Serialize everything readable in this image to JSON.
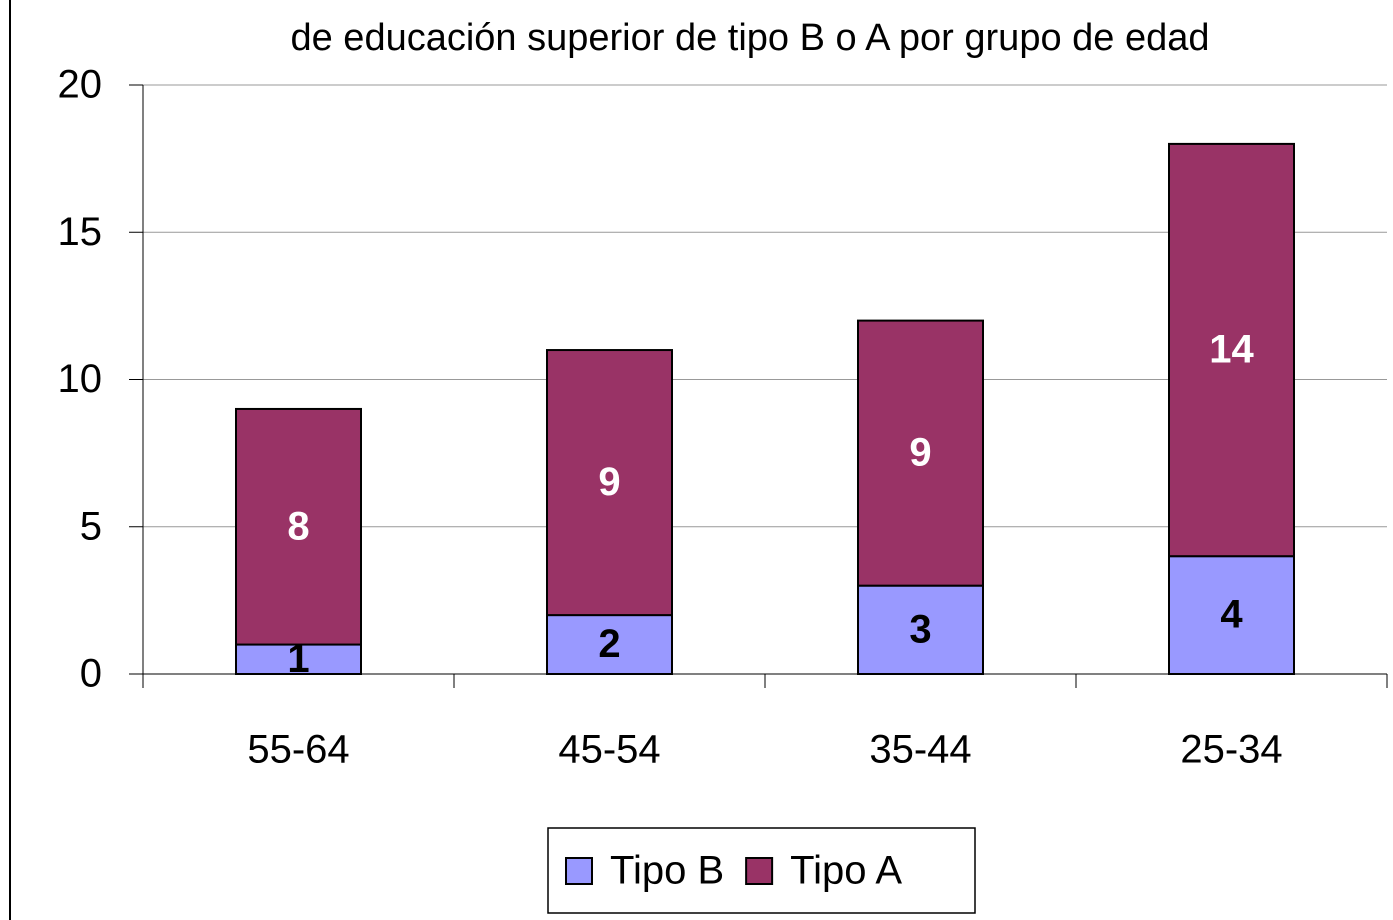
{
  "chart_data": {
    "type": "stacked_bar",
    "title": "de educación superior  de tipo B o A por grupo de edad",
    "categories": [
      "55-64",
      "45-54",
      "35-44",
      "25-34"
    ],
    "series": [
      {
        "name": "Tipo B",
        "color": "#9999ff",
        "label_color": "#000000",
        "values": [
          1,
          2,
          3,
          4
        ]
      },
      {
        "name": "Tipo A",
        "color": "#993366",
        "label_color": "#ffffff",
        "values": [
          8,
          9,
          9,
          14
        ]
      }
    ],
    "ylim": [
      0,
      20
    ],
    "yticks": [
      0,
      5,
      10,
      15,
      20
    ],
    "grid": true,
    "legend": "bottom"
  }
}
